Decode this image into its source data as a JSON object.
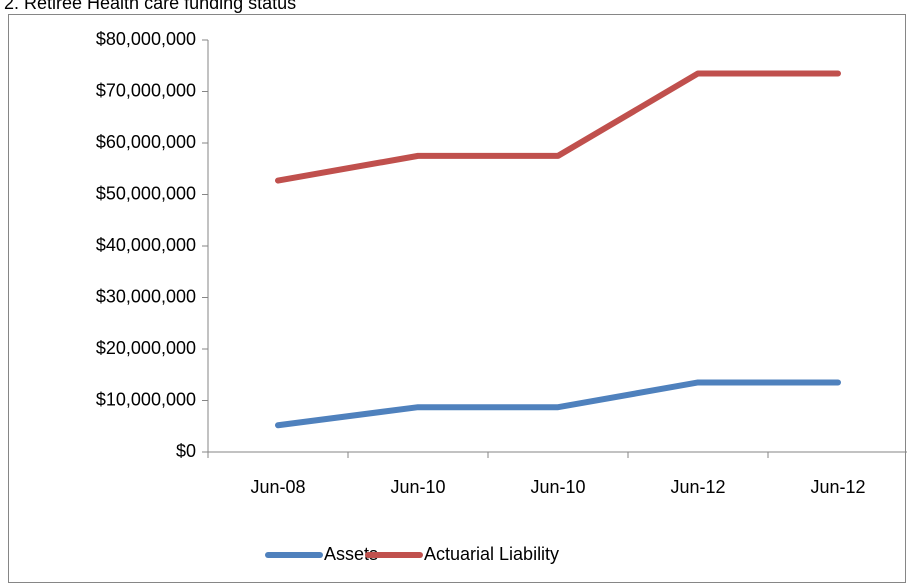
{
  "chart_data": {
    "type": "line",
    "title": "2. Retiree Health care funding status",
    "categories": [
      "Jun-08",
      "Jun-10",
      "Jun-10",
      "Jun-12",
      "Jun-12"
    ],
    "series": [
      {
        "name": "Assets",
        "color": "#4f81bd",
        "values": [
          5200000,
          8700000,
          8700000,
          13500000,
          13500000
        ]
      },
      {
        "name": "Actuarial Liability",
        "color": "#c0504d",
        "values": [
          52700000,
          57500000,
          57500000,
          73500000,
          73500000
        ]
      }
    ],
    "ylim": [
      0,
      80000000
    ],
    "yticks": [
      {
        "value": 0,
        "label": "$0"
      },
      {
        "value": 10000000,
        "label": "$10,000,000"
      },
      {
        "value": 20000000,
        "label": "$20,000,000"
      },
      {
        "value": 30000000,
        "label": "$30,000,000"
      },
      {
        "value": 40000000,
        "label": "$40,000,000"
      },
      {
        "value": 50000000,
        "label": "$50,000,000"
      },
      {
        "value": 60000000,
        "label": "$60,000,000"
      },
      {
        "value": 70000000,
        "label": "$70,000,000"
      },
      {
        "value": 80000000,
        "label": "$80,000,000"
      }
    ],
    "grid": false,
    "legend": "bottom"
  }
}
